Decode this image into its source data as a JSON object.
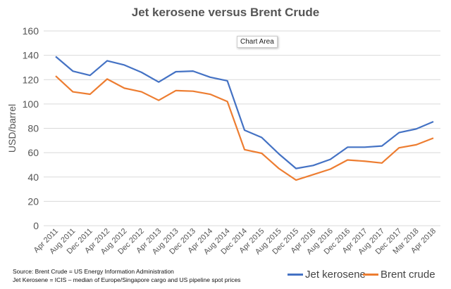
{
  "chart_data": {
    "type": "line",
    "title": "Jet kerosene versus Brent Crude",
    "xlabel": "",
    "ylabel": "USD/barrel",
    "ylim": [
      0,
      160
    ],
    "yticks": [
      0,
      20,
      40,
      60,
      80,
      100,
      120,
      140,
      160
    ],
    "grid": true,
    "legend_placement": "bottom-right",
    "categories": [
      "Apr 2011",
      "Aug 2011",
      "Dec 2011",
      "Apr 2012",
      "Aug 2012",
      "Dec 2012",
      "Apr 2013",
      "Aug 2013",
      "Dec 2013",
      "Apr 2014",
      "Aug 2014",
      "Dec 2014",
      "Apr 2015",
      "Aug 2015",
      "Dec 2015",
      "Apr 2016",
      "Aug 2016",
      "Dec 2016",
      "Apr 2017",
      "Aug 2017",
      "Dec 2017",
      "Mar 2018",
      "Apr 2018"
    ],
    "series": [
      {
        "name": "Jet kerosene",
        "color": "#4472c4",
        "values": [
          139,
          127,
          123.5,
          135.5,
          132,
          126,
          118,
          126.5,
          127,
          122,
          119,
          78.5,
          72.5,
          59,
          47,
          49.5,
          54.5,
          64.5,
          64.5,
          65.5,
          76.5,
          79.5,
          85.5
        ]
      },
      {
        "name": "Brent crude",
        "color": "#ed7d31",
        "values": [
          123,
          110,
          108,
          120.5,
          113,
          110,
          103,
          111,
          110.5,
          108,
          102,
          62.5,
          59.5,
          47,
          37.5,
          42,
          46.5,
          54,
          53,
          51.5,
          64,
          66.5,
          72
        ]
      }
    ]
  },
  "tooltip": "Chart Area",
  "source_lines": [
    "Source: Brent Crude = US Energy Information Administration",
    "Jet Kerosene = ICIS – median of Europe/Singapore cargo and US pipeline spot prices"
  ]
}
